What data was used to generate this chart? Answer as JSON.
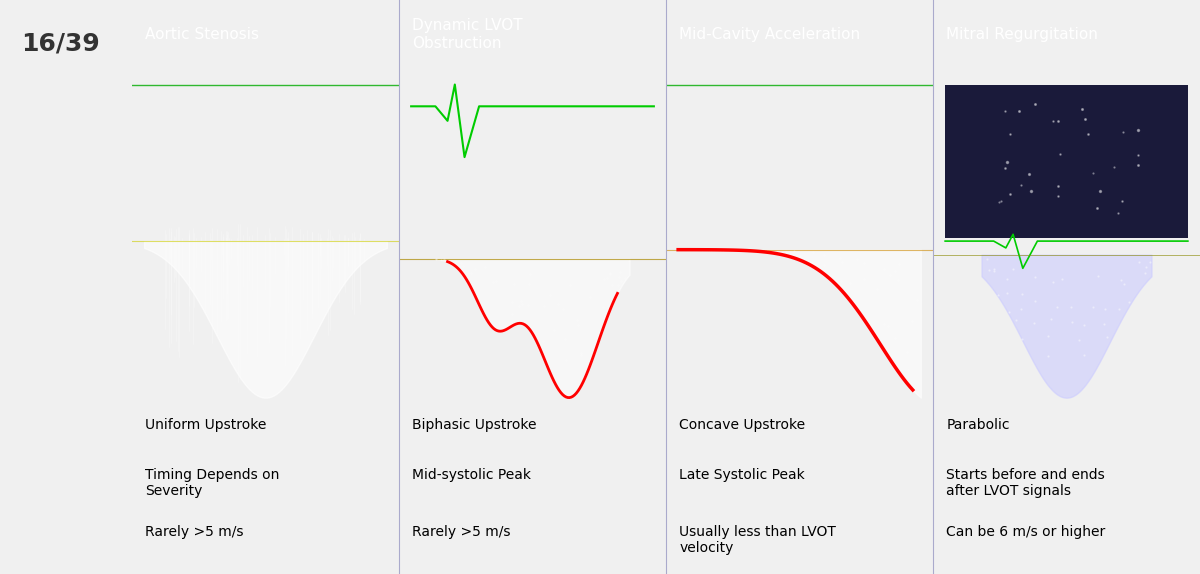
{
  "slide_number": "16/39",
  "background_color": "#f0f0f0",
  "header_bg_color": "#4472c4",
  "header_text_color": "#ffffff",
  "table_bg_color": "#dce6f1",
  "columns": [
    "Aortic Stenosis",
    "Dynamic LVOT\nObstruction",
    "Mid-Cavity Acceleration",
    "Mitral Regurgitation"
  ],
  "row1": [
    "Uniform Upstroke",
    "Biphasic Upstroke",
    "Concave Upstroke",
    "Parabolic"
  ],
  "row2": [
    "Timing Depends on\nSeverity",
    "Mid-systolic Peak",
    "Late Systolic Peak",
    "Starts before and ends\nafter LVOT signals"
  ],
  "row3": [
    "Rarely >5 m/s",
    "Rarely >5 m/s",
    "Usually less than LVOT\nvelocity",
    "Can be 6 m/s or higher"
  ],
  "col_text_color": "#000000",
  "header_fontsize": 11,
  "cell_fontsize": 10,
  "slide_num_fontsize": 18,
  "image_area_bg": "#000000",
  "border_color": "#ffffff"
}
